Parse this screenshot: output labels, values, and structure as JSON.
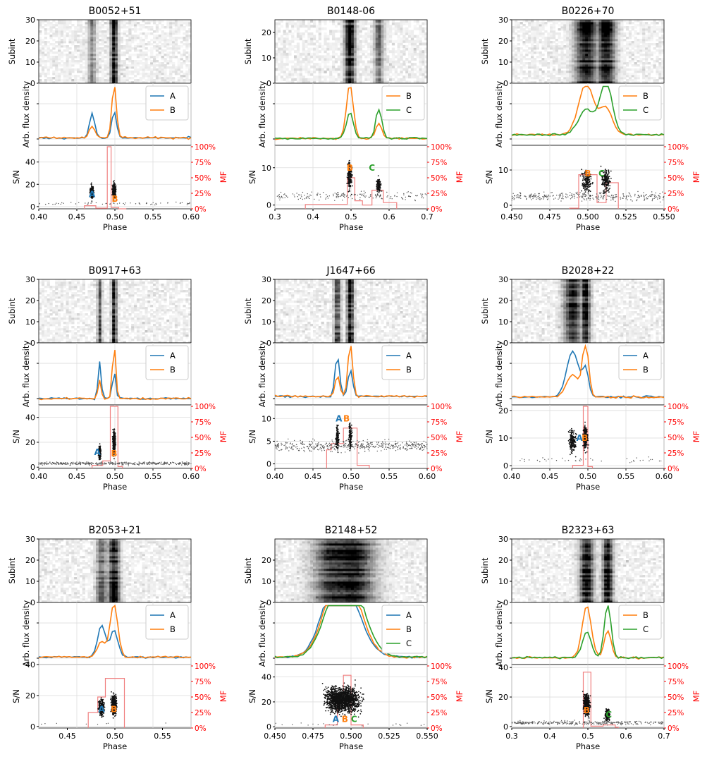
{
  "figure": {
    "axis_labels": {
      "x": "Phase",
      "subint": "Subint",
      "profile": "Arb. flux density",
      "sn": "S/N",
      "mf": "MF"
    },
    "mf_ticks": [
      "0%",
      "25%",
      "50%",
      "75%",
      "100%"
    ]
  },
  "colors": {
    "A": "#1f77b4",
    "B": "#ff7f0e",
    "C": "#2ca02c",
    "mf": "#ff0000",
    "mf_hist": "#f08080"
  },
  "chart_data": [
    {
      "type": "pulsar-panel",
      "title": "B0052+51",
      "xlim": [
        0.4,
        0.6
      ],
      "xticks": [
        "0.40",
        "0.45",
        "0.50",
        "0.55",
        "0.60"
      ],
      "subint": {
        "ylim": [
          0,
          30
        ],
        "yticks": [
          "0",
          "10",
          "20",
          "30"
        ],
        "nsub": 30
      },
      "components": [
        {
          "name": "A",
          "center": 0.47,
          "width": 0.0035,
          "height": 0.45,
          "sn_mean": 13,
          "sn_max": 22
        },
        {
          "name": "B",
          "center": 0.499,
          "width": 0.003,
          "height": 1.0,
          "sn_mean": 14,
          "sn_max": 27
        }
      ],
      "profile_series": [
        "A",
        "B"
      ],
      "baseline": 0.06,
      "sn": {
        "ylim": [
          -2,
          55
        ],
        "yticks": [
          "0",
          "20",
          "40"
        ],
        "noise": 2.8,
        "n_noise": 60
      },
      "labels": [
        {
          "text": "A",
          "comp": "A",
          "x": 0.47,
          "y": 11
        },
        {
          "text": "B",
          "comp": "B",
          "x": 0.5,
          "y": 7
        }
      ],
      "mf_hist": {
        "edges": [
          0.46,
          0.475,
          0.49,
          0.495,
          0.505,
          0.515
        ],
        "values": [
          0.05,
          0.01,
          1.0,
          0.02,
          0.0
        ]
      }
    },
    {
      "type": "pulsar-panel",
      "title": "B0148-06",
      "xlim": [
        0.3,
        0.7
      ],
      "xticks": [
        "0.3",
        "0.4",
        "0.5",
        "0.6",
        "0.7"
      ],
      "subint": {
        "ylim": [
          0,
          25
        ],
        "yticks": [
          "0",
          "10",
          "20"
        ],
        "nsub": 25
      },
      "components": [
        {
          "name": "B",
          "center": 0.497,
          "width": 0.009,
          "height": 1.0,
          "sn_mean": 8,
          "sn_max": 16
        },
        {
          "name": "C",
          "center": 0.573,
          "width": 0.008,
          "height": 0.55,
          "sn_mean": 5,
          "sn_max": 10
        }
      ],
      "profile_series": [
        "B",
        "C"
      ],
      "baseline": 0.05,
      "sn": {
        "ylim": [
          -1,
          16
        ],
        "yticks": [
          "0",
          "10"
        ],
        "noise": 2.5,
        "n_noise": 170
      },
      "labels": [
        {
          "text": "B",
          "comp": "B",
          "x": 0.497,
          "y": 10
        },
        {
          "text": "C",
          "comp": "C",
          "x": 0.555,
          "y": 10
        }
      ],
      "mf_hist": {
        "edges": [
          0.38,
          0.49,
          0.51,
          0.53,
          0.555,
          0.585,
          0.62
        ],
        "values": [
          0.07,
          0.5,
          0.13,
          0.06,
          0.3,
          0.1
        ]
      }
    },
    {
      "type": "pulsar-panel",
      "title": "B0226+70",
      "xlim": [
        0.45,
        0.55
      ],
      "xticks": [
        "0.450",
        "0.475",
        "0.500",
        "0.525",
        "0.550"
      ],
      "subint": {
        "ylim": [
          0,
          30
        ],
        "yticks": [
          "0",
          "10",
          "20",
          "30"
        ],
        "nsub": 30
      },
      "components": [
        {
          "name": "B",
          "center": 0.499,
          "width": 0.005,
          "height": 0.95,
          "sn_mean": 7,
          "sn_max": 14
        },
        {
          "name": "C",
          "center": 0.512,
          "width": 0.004,
          "height": 1.0,
          "sn_mean": 7,
          "sn_max": 15
        }
      ],
      "profile_series": [
        "B",
        "C"
      ],
      "baseline": 0.12,
      "sn": {
        "ylim": [
          -1,
          17
        ],
        "yticks": [
          "0",
          "10"
        ],
        "noise": 2.5,
        "n_noise": 300
      },
      "labels": [
        {
          "text": "B",
          "comp": "B",
          "x": 0.5,
          "y": 9
        },
        {
          "text": "C",
          "comp": "C",
          "x": 0.509,
          "y": 9
        }
      ],
      "mf_hist": {
        "edges": [
          0.488,
          0.494,
          0.506,
          0.512,
          0.52
        ],
        "values": [
          0.01,
          0.55,
          0.1,
          0.42
        ]
      }
    },
    {
      "type": "pulsar-panel",
      "title": "B0917+63",
      "xlim": [
        0.4,
        0.6
      ],
      "xticks": [
        "0.40",
        "0.45",
        "0.50",
        "0.55",
        "0.60"
      ],
      "subint": {
        "ylim": [
          0,
          30
        ],
        "yticks": [
          "0",
          "10",
          "20",
          "30"
        ],
        "nsub": 30
      },
      "components": [
        {
          "name": "A",
          "center": 0.48,
          "width": 0.002,
          "height": 0.7,
          "sn_mean": 12,
          "sn_max": 22
        },
        {
          "name": "B",
          "center": 0.499,
          "width": 0.0022,
          "height": 1.0,
          "sn_mean": 20,
          "sn_max": 48
        }
      ],
      "profile_series": [
        "A",
        "B"
      ],
      "baseline": 0.04,
      "sn": {
        "ylim": [
          -1,
          50
        ],
        "yticks": [
          "0",
          "20",
          "40"
        ],
        "noise": 3,
        "n_noise": 400
      },
      "labels": [
        {
          "text": "A",
          "comp": "A",
          "x": 0.477,
          "y": 12
        },
        {
          "text": "B",
          "comp": "B",
          "x": 0.499,
          "y": 11
        }
      ],
      "mf_hist": {
        "edges": [
          0.47,
          0.484,
          0.494,
          0.504,
          0.51
        ],
        "values": [
          0.05,
          0.12,
          1.0,
          0.03
        ]
      }
    },
    {
      "type": "pulsar-panel",
      "title": "J1647+66",
      "xlim": [
        0.4,
        0.6
      ],
      "xticks": [
        "0.40",
        "0.45",
        "0.50",
        "0.55",
        "0.60"
      ],
      "subint": {
        "ylim": [
          0,
          30
        ],
        "yticks": [
          "0",
          "10",
          "20",
          "30"
        ],
        "nsub": 30
      },
      "components": [
        {
          "name": "A",
          "center": 0.482,
          "width": 0.003,
          "height": 0.75,
          "sn_mean": 6,
          "sn_max": 10
        },
        {
          "name": "B",
          "center": 0.499,
          "width": 0.003,
          "height": 1.0,
          "sn_mean": 6,
          "sn_max": 11
        }
      ],
      "profile_series": [
        "A",
        "B"
      ],
      "baseline": 0.08,
      "sn": {
        "ylim": [
          -1,
          13
        ],
        "yticks": [
          "0",
          "5",
          "10"
        ],
        "noise": 4,
        "n_noise": 450
      },
      "labels": [
        {
          "text": "A",
          "comp": "A",
          "x": 0.484,
          "y": 10
        },
        {
          "text": "B",
          "comp": "B",
          "x": 0.494,
          "y": 10
        }
      ],
      "mf_hist": {
        "edges": [
          0.468,
          0.474,
          0.49,
          0.508,
          0.524
        ],
        "values": [
          0.3,
          0.4,
          0.65,
          0.05
        ]
      }
    },
    {
      "type": "pulsar-panel",
      "title": "B2028+22",
      "xlim": [
        0.4,
        0.6
      ],
      "xticks": [
        "0.40",
        "0.45",
        "0.50",
        "0.55",
        "0.60"
      ],
      "subint": {
        "ylim": [
          0,
          30
        ],
        "yticks": [
          "0",
          "10",
          "20",
          "30"
        ],
        "nsub": 30
      },
      "components": [
        {
          "name": "A",
          "center": 0.48,
          "width": 0.008,
          "height": 0.85,
          "sn_mean": 9,
          "sn_max": 15
        },
        {
          "name": "B",
          "center": 0.497,
          "width": 0.004,
          "height": 1.0,
          "sn_mean": 10,
          "sn_max": 20
        }
      ],
      "profile_series": [
        "A",
        "B"
      ],
      "baseline": 0.07,
      "sn": {
        "ylim": [
          -1,
          22
        ],
        "yticks": [
          "0",
          "10",
          "20"
        ],
        "noise": 2,
        "n_noise": 40
      },
      "labels": [
        {
          "text": "A",
          "comp": "A",
          "x": 0.489,
          "y": 10
        },
        {
          "text": "B",
          "comp": "B",
          "x": 0.496,
          "y": 10
        }
      ],
      "mf_hist": {
        "edges": [
          0.48,
          0.494,
          0.5,
          0.506
        ],
        "values": [
          0.05,
          1.0,
          0.03
        ]
      }
    },
    {
      "type": "pulsar-panel",
      "title": "B2053+21",
      "xlim": [
        0.42,
        0.58
      ],
      "xticks": [
        "0.45",
        "0.50",
        "0.55"
      ],
      "xtick_values": [
        0.45,
        0.5,
        0.55
      ],
      "subint": {
        "ylim": [
          0,
          30
        ],
        "yticks": [
          "0",
          "10",
          "20",
          "30"
        ],
        "nsub": 30
      },
      "components": [
        {
          "name": "A",
          "center": 0.486,
          "width": 0.004,
          "height": 0.6,
          "sn_mean": 12,
          "sn_max": 22
        },
        {
          "name": "B",
          "center": 0.499,
          "width": 0.004,
          "height": 1.0,
          "sn_mean": 14,
          "sn_max": 36
        }
      ],
      "profile_series": [
        "A",
        "B"
      ],
      "baseline": 0.06,
      "sn": {
        "ylim": [
          -1,
          40
        ],
        "yticks": [
          "0",
          "20",
          "40"
        ],
        "noise": 2,
        "n_noise": 8
      },
      "labels": [
        {
          "text": "A",
          "comp": "A",
          "x": 0.486,
          "y": 11
        },
        {
          "text": "B",
          "comp": "B",
          "x": 0.499,
          "y": 11
        }
      ],
      "mf_hist": {
        "edges": [
          0.472,
          0.482,
          0.49,
          0.498,
          0.51
        ],
        "values": [
          0.25,
          0.5,
          0.8,
          0.8
        ]
      }
    },
    {
      "type": "pulsar-panel",
      "title": "B2148+52",
      "xlim": [
        0.45,
        0.55
      ],
      "xticks": [
        "0.450",
        "0.475",
        "0.500",
        "0.525",
        "0.550"
      ],
      "subint": {
        "ylim": [
          0,
          30
        ],
        "yticks": [
          "0",
          "10",
          "20"
        ],
        "nsub": 30
      },
      "components": [
        {
          "name": "A",
          "center": 0.489,
          "width": 0.009,
          "height": 0.85,
          "sn_mean": 22,
          "sn_max": 42
        },
        {
          "name": "B",
          "center": 0.494,
          "width": 0.01,
          "height": 0.9,
          "sn_mean": 22,
          "sn_max": 44
        },
        {
          "name": "C",
          "center": 0.5,
          "width": 0.01,
          "height": 1.0,
          "sn_mean": 22,
          "sn_max": 45
        }
      ],
      "profile_series": [
        "A",
        "B",
        "C"
      ],
      "baseline": 0.06,
      "sn": {
        "ylim": [
          -1,
          50
        ],
        "yticks": [
          "0",
          "20",
          "40"
        ],
        "noise": 2,
        "n_noise": 20
      },
      "labels": [
        {
          "text": "A",
          "comp": "A",
          "x": 0.49,
          "y": 6
        },
        {
          "text": "B",
          "comp": "B",
          "x": 0.496,
          "y": 6
        },
        {
          "text": "C",
          "comp": "C",
          "x": 0.502,
          "y": 6
        }
      ],
      "mf_hist": {
        "edges": [
          0.483,
          0.491,
          0.495,
          0.5,
          0.508
        ],
        "values": [
          0.05,
          0.45,
          0.85,
          0.05
        ]
      }
    },
    {
      "type": "pulsar-panel",
      "title": "B2323+63",
      "xlim": [
        0.3,
        0.7
      ],
      "xticks": [
        "0.3",
        "0.4",
        "0.5",
        "0.6",
        "0.7"
      ],
      "subint": {
        "ylim": [
          0,
          30
        ],
        "yticks": [
          "0",
          "10",
          "20",
          "30"
        ],
        "nsub": 30
      },
      "components": [
        {
          "name": "B",
          "center": 0.497,
          "width": 0.012,
          "height": 0.95,
          "sn_mean": 15,
          "sn_max": 40
        },
        {
          "name": "C",
          "center": 0.552,
          "width": 0.009,
          "height": 1.0,
          "sn_mean": 8,
          "sn_max": 20
        }
      ],
      "profile_series": [
        "B",
        "C"
      ],
      "baseline": 0.05,
      "sn": {
        "ylim": [
          -1,
          42
        ],
        "yticks": [
          "0",
          "20",
          "40"
        ],
        "noise": 2.5,
        "n_noise": 300
      },
      "labels": [
        {
          "text": "B",
          "comp": "B",
          "x": 0.497,
          "y": 11
        },
        {
          "text": "C",
          "comp": "C",
          "x": 0.555,
          "y": 8
        }
      ],
      "mf_hist": {
        "edges": [
          0.488,
          0.508,
          0.54,
          0.572,
          0.58
        ],
        "values": [
          0.9,
          0.03,
          0.05,
          0.01
        ]
      }
    }
  ]
}
